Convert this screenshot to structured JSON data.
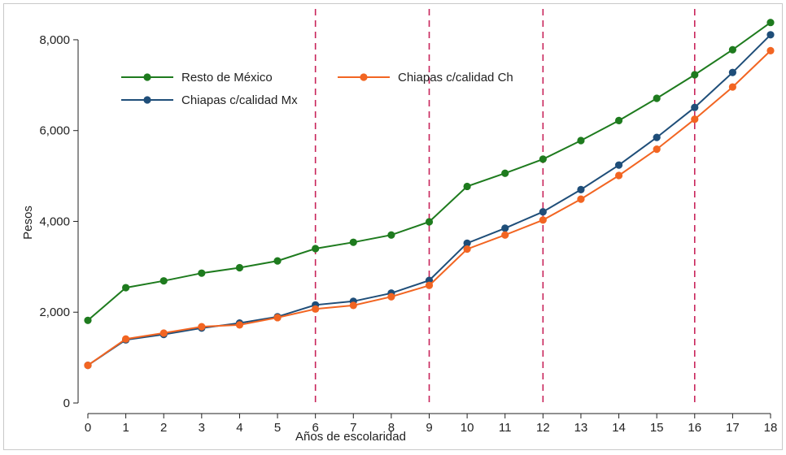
{
  "chart_data": {
    "type": "line",
    "title": "",
    "xlabel": "Años de escolaridad",
    "ylabel": "Pesos",
    "x": [
      0,
      1,
      2,
      3,
      4,
      5,
      6,
      7,
      8,
      9,
      10,
      11,
      12,
      13,
      14,
      15,
      16,
      17,
      18
    ],
    "xlim": [
      0,
      18
    ],
    "ylim": [
      0,
      8500
    ],
    "yticks": [
      0,
      2000,
      4000,
      6000,
      8000
    ],
    "ytick_labels": [
      "0",
      "2,000",
      "4,000",
      "6,000",
      "8,000"
    ],
    "xtick_labels": [
      "0",
      "1",
      "2",
      "3",
      "4",
      "5",
      "6",
      "7",
      "8",
      "9",
      "10",
      "11",
      "12",
      "13",
      "14",
      "15",
      "16",
      "17",
      "18"
    ],
    "reference_lines_x": [
      6,
      9,
      12,
      16
    ],
    "reference_line_color": "#c8245a",
    "grid": false,
    "legend_position": "top-left",
    "series": [
      {
        "name": "Resto de México",
        "color": "#1e7b1e",
        "values": [
          1820,
          2540,
          2690,
          2860,
          2980,
          3130,
          3400,
          3540,
          3700,
          3990,
          4770,
          5060,
          5370,
          5780,
          6220,
          6710,
          7230,
          7780,
          8380
        ]
      },
      {
        "name": "Chiapas c/calidad Mx",
        "color": "#1f4e79",
        "values": [
          830,
          1390,
          1510,
          1650,
          1760,
          1900,
          2160,
          2240,
          2420,
          2700,
          3520,
          3850,
          4210,
          4700,
          5240,
          5850,
          6510,
          7280,
          8110
        ]
      },
      {
        "name": "Chiapas c/calidad Ch",
        "color": "#f26522",
        "values": [
          830,
          1410,
          1540,
          1680,
          1720,
          1880,
          2070,
          2150,
          2340,
          2590,
          3390,
          3700,
          4030,
          4490,
          5010,
          5590,
          6250,
          6960,
          7760
        ]
      }
    ]
  }
}
